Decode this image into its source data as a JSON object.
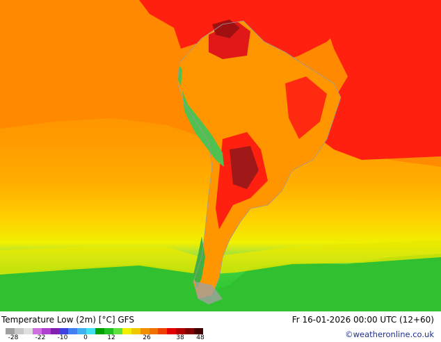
{
  "title": "Temperature Low (2m) [°C] GFS",
  "run_info": "Fr 16-01-2026 00:00 UTC (12+60)",
  "credit": "©weatheronline.co.uk",
  "legend": {
    "ticks": [
      "-28",
      "-22",
      "-10",
      "0",
      "12",
      "26",
      "38",
      "48"
    ],
    "colors": [
      "#a0a0a0",
      "#c8c8c8",
      "#e0e0e0",
      "#d070e0",
      "#b040d0",
      "#8020b0",
      "#4040e0",
      "#4080f0",
      "#40b0f0",
      "#40e0f0",
      "#00a000",
      "#20c020",
      "#60e040",
      "#f0f000",
      "#f0c800",
      "#f09000",
      "#f07000",
      "#f04000",
      "#e00000",
      "#b00000",
      "#800000",
      "#400000"
    ]
  },
  "map_colors": {
    "ocean_warm": "#ff8c00",
    "ocean_light": "#ffa500",
    "ocean_yellow": "#ffc800",
    "ocean_cold": "#ffe000",
    "cold_green": "#3cc83c",
    "deep_green": "#28a028",
    "land_hot": "#e02020",
    "land_very_hot": "#a01818",
    "andes_green": "#50c050",
    "border": "#a0a0a0"
  }
}
